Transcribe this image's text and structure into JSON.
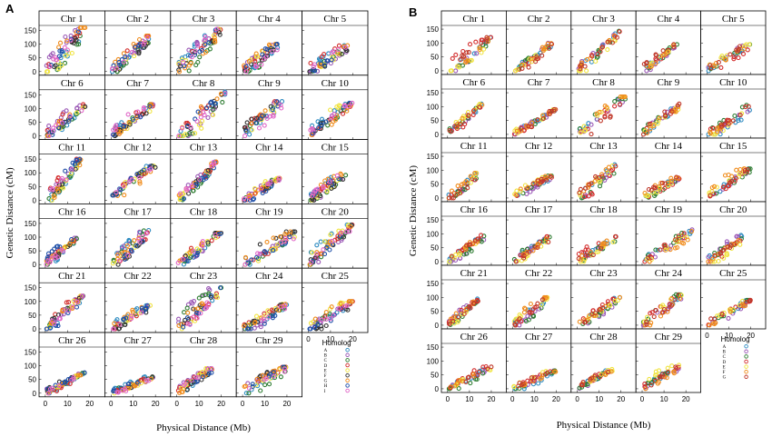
{
  "chart_data": [
    {
      "panel_label": "A",
      "type": "scatter",
      "facet_titles": [
        "Chr 1",
        "Chr 2",
        "Chr 3",
        "Chr 4",
        "Chr 5",
        "Chr 6",
        "Chr 7",
        "Chr 8",
        "Chr 9",
        "Chr 10",
        "Chr 11",
        "Chr 12",
        "Chr 13",
        "Chr 14",
        "Chr 15",
        "Chr 16",
        "Chr 17",
        "Chr 18",
        "Chr 19",
        "Chr 20",
        "Chr 21",
        "Chr 22",
        "Chr 23",
        "Chr 24",
        "Chr 25",
        "Chr 26",
        "Chr 27",
        "Chr 28",
        "Chr 29"
      ],
      "xlabel": "Physical Distance (Mb)",
      "ylabel": "Genetic Distance (cM)",
      "xlim": [
        -2,
        26
      ],
      "ylim": [
        -10,
        165
      ],
      "xticks": [
        0,
        10,
        20
      ],
      "yticks": [
        0,
        50,
        100,
        150
      ],
      "legend_title": "Homolog",
      "legend_position": "bottom-right",
      "series": [
        {
          "name": "A",
          "color": "#2e8bc0"
        },
        {
          "name": "B",
          "color": "#9b59b6"
        },
        {
          "name": "C",
          "color": "#2e7d32"
        },
        {
          "name": "D",
          "color": "#d32f2f"
        },
        {
          "name": "E",
          "color": "#f0e442"
        },
        {
          "name": "F",
          "color": "#333333"
        },
        {
          "name": "G",
          "color": "#f08c1c"
        },
        {
          "name": "H",
          "color": "#1f4fa8"
        },
        {
          "name": "I",
          "color": "#e066c7"
        }
      ],
      "facets": [
        {
          "max_x": 18,
          "max_cM": 160
        },
        {
          "max_x": 17,
          "max_cM": 130
        },
        {
          "max_x": 20,
          "max_cM": 155
        },
        {
          "max_x": 16,
          "max_cM": 100
        },
        {
          "max_x": 18,
          "max_cM": 95
        },
        {
          "max_x": 18,
          "max_cM": 115
        },
        {
          "max_x": 19,
          "max_cM": 115
        },
        {
          "max_x": 22,
          "max_cM": 160
        },
        {
          "max_x": 18,
          "max_cM": 130
        },
        {
          "max_x": 20,
          "max_cM": 120
        },
        {
          "max_x": 16,
          "max_cM": 150
        },
        {
          "max_x": 20,
          "max_cM": 125
        },
        {
          "max_x": 18,
          "max_cM": 140
        },
        {
          "max_x": 17,
          "max_cM": 80
        },
        {
          "max_x": 17,
          "max_cM": 100
        },
        {
          "max_x": 15,
          "max_cM": 100
        },
        {
          "max_x": 17,
          "max_cM": 125
        },
        {
          "max_x": 20,
          "max_cM": 115
        },
        {
          "max_x": 24,
          "max_cM": 120
        },
        {
          "max_x": 20,
          "max_cM": 145
        },
        {
          "max_x": 17,
          "max_cM": 120
        },
        {
          "max_x": 18,
          "max_cM": 85
        },
        {
          "max_x": 20,
          "max_cM": 150
        },
        {
          "max_x": 20,
          "max_cM": 90
        },
        {
          "max_x": 20,
          "max_cM": 100
        },
        {
          "max_x": 18,
          "max_cM": 75
        },
        {
          "max_x": 19,
          "max_cM": 60
        },
        {
          "max_x": 16,
          "max_cM": 90
        },
        {
          "max_x": 20,
          "max_cM": 95
        }
      ]
    },
    {
      "panel_label": "B",
      "type": "scatter",
      "facet_titles": [
        "Chr 1",
        "Chr 2",
        "Chr 3",
        "Chr 4",
        "Chr 5",
        "Chr 6",
        "Chr 7",
        "Chr 8",
        "Chr 9",
        "Chr 10",
        "Chr 11",
        "Chr 12",
        "Chr 13",
        "Chr 14",
        "Chr 15",
        "Chr 16",
        "Chr 17",
        "Chr 18",
        "Chr 19",
        "Chr 20",
        "Chr 21",
        "Chr 22",
        "Chr 23",
        "Chr 24",
        "Chr 25",
        "Chr 26",
        "Chr 27",
        "Chr 28",
        "Chr 29"
      ],
      "xlabel": "Physical Distance (Mb)",
      "ylabel": "Genetic Distance (cM)",
      "xlim": [
        -2,
        26
      ],
      "ylim": [
        -10,
        160
      ],
      "xticks": [
        0,
        10,
        20
      ],
      "yticks": [
        0,
        50,
        100,
        150
      ],
      "legend_title": "Homolog",
      "legend_position": "bottom-right",
      "series": [
        {
          "name": "A",
          "color": "#2e8bc0"
        },
        {
          "name": "B",
          "color": "#9b59b6"
        },
        {
          "name": "C",
          "color": "#2e7d32"
        },
        {
          "name": "D",
          "color": "#d32f2f"
        },
        {
          "name": "E",
          "color": "#f0e442"
        },
        {
          "name": "F",
          "color": "#f08c1c"
        },
        {
          "name": "G",
          "color": "#c0392b"
        }
      ],
      "facets": [
        {
          "max_x": 20,
          "max_cM": 120
        },
        {
          "max_x": 18,
          "max_cM": 100
        },
        {
          "max_x": 20,
          "max_cM": 145
        },
        {
          "max_x": 16,
          "max_cM": 95
        },
        {
          "max_x": 20,
          "max_cM": 95
        },
        {
          "max_x": 16,
          "max_cM": 110
        },
        {
          "max_x": 20,
          "max_cM": 90
        },
        {
          "max_x": 22,
          "max_cM": 135
        },
        {
          "max_x": 17,
          "max_cM": 110
        },
        {
          "max_x": 20,
          "max_cM": 105
        },
        {
          "max_x": 14,
          "max_cM": 90
        },
        {
          "max_x": 18,
          "max_cM": 80
        },
        {
          "max_x": 18,
          "max_cM": 120
        },
        {
          "max_x": 17,
          "max_cM": 75
        },
        {
          "max_x": 20,
          "max_cM": 105
        },
        {
          "max_x": 17,
          "max_cM": 95
        },
        {
          "max_x": 17,
          "max_cM": 90
        },
        {
          "max_x": 18,
          "max_cM": 90
        },
        {
          "max_x": 23,
          "max_cM": 115
        },
        {
          "max_x": 17,
          "max_cM": 95
        },
        {
          "max_x": 14,
          "max_cM": 95
        },
        {
          "max_x": 16,
          "max_cM": 100
        },
        {
          "max_x": 20,
          "max_cM": 100
        },
        {
          "max_x": 18,
          "max_cM": 110
        },
        {
          "max_x": 20,
          "max_cM": 90
        },
        {
          "max_x": 20,
          "max_cM": 80
        },
        {
          "max_x": 20,
          "max_cM": 70
        },
        {
          "max_x": 17,
          "max_cM": 75
        },
        {
          "max_x": 18,
          "max_cM": 85
        }
      ]
    }
  ]
}
